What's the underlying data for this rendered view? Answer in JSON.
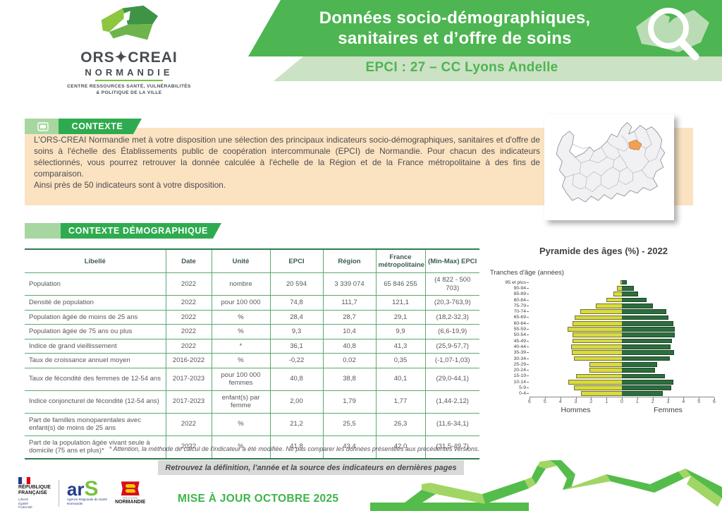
{
  "header": {
    "logo": {
      "org": "ORS✦CREAI",
      "region": "NORMANDIE",
      "tagline1": "CENTRE RESSOURCES SANTÉ, VULNÉRABILITÉS",
      "tagline2": "& POLITIQUE DE LA VILLE"
    },
    "title_line1": "Données socio-démographiques,",
    "title_line2": "sanitaires et d’offre de soins",
    "subtitle": "EPCI : 27 – CC Lyons Andelle"
  },
  "contexte": {
    "label": "CONTEXTE",
    "paragraph1": "L'ORS-CREAI Normandie met à votre disposition une sélection des principaux indicateurs socio-démographiques, sanitaires et d'offre de soins à l'échelle des Établissements public de coopération intercommunale (EPCI) de Normandie. Pour chacun des indicateurs sélectionnés, vous pourrez retrouver la donnée calculée à l'échelle de la Région et de la France métropolitaine à des fins de comparaison.",
    "paragraph2": "Ainsi près de 50 indicateurs sont à votre disposition."
  },
  "demographics": {
    "label": "CONTEXTE DÉMOGRAPHIQUE",
    "table": {
      "columns": [
        "Libellé",
        "Date",
        "Unité",
        "EPCI",
        "Région",
        "France métropolitaine",
        "(Min-Max) EPCI"
      ],
      "rows": [
        [
          "Population",
          "2022",
          "nombre",
          "20 594",
          "3 339 074",
          "65 846 255",
          "(4 822 - 500 703)"
        ],
        [
          "Densité de population",
          "2022",
          "pour 100 000",
          "74,8",
          "111,7",
          "121,1",
          "(20,3-763,9)"
        ],
        [
          "Population âgée de moins de 25 ans",
          "2022",
          "%",
          "28,4",
          "28,7",
          "29,1",
          "(18,2-32,3)"
        ],
        [
          "Population âgée de 75 ans ou plus",
          "2022",
          "%",
          "9,3",
          "10,4",
          "9,9",
          "(6,6-19,9)"
        ],
        [
          "Indice de grand vieillissement",
          "2022",
          "*",
          "36,1",
          "40,8",
          "41,3",
          "(25,9-57,7)"
        ],
        [
          "Taux de croissance annuel moyen",
          "2016-2022",
          "%",
          "-0,22",
          "0,02",
          "0,35",
          "(-1,07-1,03)"
        ],
        [
          "Taux de fécondité des femmes de 12-54 ans",
          "2017-2023",
          "pour 100 000 femmes",
          "40,8",
          "38,8",
          "40,1",
          "(29,0-44,1)"
        ],
        [
          "Indice conjoncturel de fécondité (12-54 ans)",
          "2017-2023",
          "enfant(s) par femme",
          "2,00",
          "1,79",
          "1,77",
          "(1,44-2,12)"
        ],
        [
          "Part de familles monoparentales avec enfant(s) de moins de 25 ans",
          "2022",
          "%",
          "21,2",
          "25,5",
          "26,3",
          "(11,6-34,1)"
        ],
        [
          "Part de la population âgée vivant seule à domicile (75 ans et plus)*",
          "2022",
          "%",
          "41,8",
          "43,4",
          "42,0",
          "(31,5-49,7)"
        ]
      ]
    },
    "footnote": "* Attention, la méthode de calcul de l'indicateur a été modifiée. Ne pas comparer les données présentées aux précédentes versions.",
    "banner": "Retrouvez la définition, l’année et la source des indicateurs en dernières pages"
  },
  "chart_data": {
    "type": "bar",
    "subtype": "population-pyramid",
    "title": "Pyramide des âges (%) - 2022",
    "axis_label": "Tranches d'âge (années)",
    "categories": [
      "95 et plus",
      "90-94",
      "85-89",
      "80-84",
      "75-79",
      "70-74",
      "65-69",
      "60-64",
      "55-59",
      "50-54",
      "45-49",
      "40-44",
      "35-39",
      "30-34",
      "25-29",
      "20-24",
      "15-19",
      "10-14",
      "5-9",
      "0-4"
    ],
    "series": [
      {
        "name": "Hommes",
        "values": [
          0.1,
          0.3,
          0.55,
          1.0,
          1.7,
          2.7,
          3.05,
          3.2,
          3.55,
          3.2,
          3.2,
          3.3,
          3.25,
          3.1,
          2.1,
          2.1,
          3.0,
          3.5,
          3.1,
          2.65
        ]
      },
      {
        "name": "Femmes",
        "values": [
          0.3,
          0.8,
          1.05,
          1.6,
          2.0,
          2.9,
          3.0,
          3.35,
          3.45,
          3.45,
          3.25,
          3.15,
          3.4,
          3.1,
          2.3,
          2.15,
          2.8,
          3.35,
          3.2,
          2.65
        ]
      }
    ],
    "xlim": [
      -6,
      6
    ],
    "ticks": [
      6,
      5,
      4,
      3,
      2,
      1,
      0,
      1,
      2,
      3,
      4,
      5,
      6
    ],
    "legend_position": "bottom",
    "colors": {
      "hommes": "#d9da3e",
      "femmes": "#2d6e3e"
    }
  },
  "map": {
    "highlight_color": "#f0a155",
    "region_fill": "#f1f1f4",
    "border_color": "#95959d"
  },
  "footer": {
    "republique": {
      "line1": "RÉPUBLIQUE",
      "line2": "FRANÇAISE",
      "motto1": "Liberté",
      "motto2": "Égalité",
      "motto3": "Fraternité"
    },
    "ars": {
      "ar": "ar",
      "s": "S",
      "sub1": "Agence Régionale de Santé",
      "sub2": "Normandie"
    },
    "normandie": {
      "region": "RÉGION",
      "name": "NORMANDIE"
    },
    "update": "MISE À JOUR OCTOBRE 2025"
  },
  "colors": {
    "banner_green": "#4db551",
    "pale_green": "#cbe2c5",
    "section_green": "#2fab4f",
    "peach": "#fbe3c2",
    "table_border": "#5aa86f",
    "update_green": "#3db54a"
  }
}
